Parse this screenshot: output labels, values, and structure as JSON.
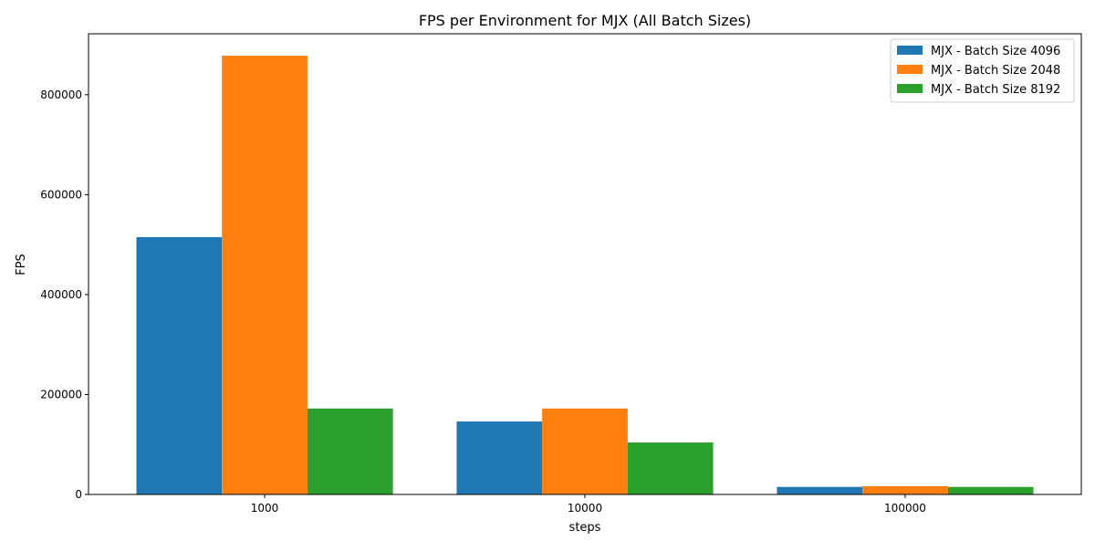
{
  "chart_data": {
    "type": "bar",
    "title": "FPS per Environment for MJX (All Batch Sizes)",
    "xlabel": "steps",
    "ylabel": "FPS",
    "categories": [
      "1000",
      "10000",
      "100000"
    ],
    "ylim": [
      0,
      922000
    ],
    "yticks": [
      0,
      200000,
      400000,
      600000,
      800000
    ],
    "ytick_labels": [
      "0",
      "200000",
      "400000",
      "600000",
      "800000"
    ],
    "grid": false,
    "legend_position": "top-right",
    "series": [
      {
        "name": "MJX - Batch Size 4096",
        "color": "#1f77b4",
        "values": [
          515000,
          146000,
          15000
        ]
      },
      {
        "name": "MJX - Batch Size 2048",
        "color": "#ff7f0e",
        "values": [
          878000,
          172000,
          16500
        ]
      },
      {
        "name": "MJX - Batch Size 8192",
        "color": "#2ca02c",
        "values": [
          172000,
          104000,
          15000
        ]
      }
    ]
  }
}
